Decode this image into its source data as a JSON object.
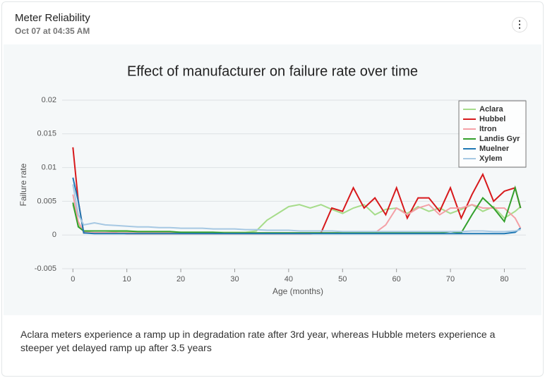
{
  "header": {
    "title": "Meter Reliability",
    "subtitle": "Oct 07 at 04:35 AM"
  },
  "chart_data": {
    "type": "line",
    "title": "Effect of manufacturer on failure rate over time",
    "x_label": "Age (months)",
    "y_label": "Failure rate",
    "x": [
      0,
      1,
      2,
      4,
      6,
      8,
      10,
      12,
      14,
      16,
      18,
      20,
      22,
      24,
      26,
      28,
      30,
      32,
      34,
      36,
      38,
      40,
      42,
      44,
      46,
      48,
      50,
      52,
      54,
      56,
      58,
      60,
      62,
      64,
      66,
      68,
      70,
      72,
      74,
      76,
      78,
      80,
      82,
      83
    ],
    "series": [
      {
        "name": "Aclara",
        "color": "#a6dc8a",
        "values": [
          0.0045,
          0.0015,
          0.0005,
          0.0006,
          0.0006,
          0.0005,
          0.0005,
          0.0005,
          0.0005,
          0.0005,
          0.0005,
          0.0004,
          0.0004,
          0.0004,
          0.0004,
          0.0004,
          0.0004,
          0.0004,
          0.0006,
          0.0022,
          0.0032,
          0.0042,
          0.0045,
          0.004,
          0.0045,
          0.0038,
          0.0032,
          0.004,
          0.0045,
          0.003,
          0.0038,
          0.004,
          0.0032,
          0.0042,
          0.0035,
          0.004,
          0.0032,
          0.0038,
          0.0045,
          0.0035,
          0.0042,
          0.0025,
          0.0035,
          0.0042
        ]
      },
      {
        "name": "Hubbel",
        "color": "#d7191c",
        "values": [
          0.013,
          0.005,
          0.0003,
          0.0003,
          0.0003,
          0.0003,
          0.0002,
          0.0002,
          0.0002,
          0.0002,
          0.0002,
          0.0002,
          0.0002,
          0.0002,
          0.0002,
          0.0002,
          0.0002,
          0.0002,
          0.0002,
          0.0002,
          0.0002,
          0.0002,
          0.0002,
          0.0002,
          0.0003,
          0.004,
          0.0035,
          0.007,
          0.004,
          0.0055,
          0.003,
          0.007,
          0.0025,
          0.0055,
          0.0055,
          0.0035,
          0.007,
          0.0025,
          0.006,
          0.009,
          0.005,
          0.0065,
          0.007,
          0.004
        ]
      },
      {
        "name": "Itron",
        "color": "#f4a0a6",
        "values": [
          0.006,
          0.002,
          0.0004,
          0.0003,
          0.0003,
          0.0003,
          0.0003,
          0.0003,
          0.0003,
          0.0003,
          0.0003,
          0.0003,
          0.0003,
          0.0003,
          0.0003,
          0.0003,
          0.0003,
          0.0003,
          0.0003,
          0.0003,
          0.0003,
          0.0003,
          0.0003,
          0.0003,
          0.0003,
          0.0003,
          0.0003,
          0.0003,
          0.0003,
          0.0003,
          0.0015,
          0.004,
          0.003,
          0.004,
          0.0045,
          0.003,
          0.004,
          0.004,
          0.0045,
          0.004,
          0.004,
          0.004,
          0.0025,
          0.001
        ]
      },
      {
        "name": "Landis Gyr",
        "color": "#33a02c",
        "values": [
          0.0048,
          0.0012,
          0.0006,
          0.0006,
          0.0006,
          0.0006,
          0.0006,
          0.0005,
          0.0005,
          0.0005,
          0.0005,
          0.0004,
          0.0004,
          0.0004,
          0.0004,
          0.0003,
          0.0003,
          0.0003,
          0.0003,
          0.0003,
          0.0003,
          0.0003,
          0.0003,
          0.0003,
          0.0003,
          0.0003,
          0.0003,
          0.0003,
          0.0003,
          0.0003,
          0.0003,
          0.0003,
          0.0003,
          0.0003,
          0.0003,
          0.0003,
          0.0005,
          0.0003,
          0.003,
          0.0055,
          0.004,
          0.002,
          0.007,
          0.004
        ]
      },
      {
        "name": "Muelner",
        "color": "#1f78b4",
        "values": [
          0.0085,
          0.005,
          0.0003,
          0.0002,
          0.0002,
          0.0002,
          0.0002,
          0.0002,
          0.0002,
          0.0002,
          0.0002,
          0.0002,
          0.0002,
          0.0002,
          0.0002,
          0.0002,
          0.0002,
          0.0002,
          0.0002,
          0.0002,
          0.0002,
          0.0002,
          0.0002,
          0.0002,
          0.0002,
          0.0002,
          0.0002,
          0.0002,
          0.0002,
          0.0002,
          0.0002,
          0.0002,
          0.0002,
          0.0002,
          0.0002,
          0.0002,
          0.0002,
          0.0002,
          0.0002,
          0.0002,
          0.0002,
          0.0002,
          0.0004,
          0.001
        ]
      },
      {
        "name": "Xylem",
        "color": "#a6c8e3",
        "values": [
          0.0075,
          0.003,
          0.0015,
          0.0018,
          0.0015,
          0.0014,
          0.0013,
          0.0012,
          0.0012,
          0.0011,
          0.0011,
          0.001,
          0.001,
          0.001,
          0.0009,
          0.0009,
          0.0009,
          0.0008,
          0.0008,
          0.0007,
          0.0007,
          0.0007,
          0.0006,
          0.0006,
          0.0006,
          0.0006,
          0.0005,
          0.0005,
          0.0005,
          0.0005,
          0.0005,
          0.0005,
          0.0005,
          0.0005,
          0.0005,
          0.0005,
          0.0005,
          0.0005,
          0.0006,
          0.0006,
          0.0005,
          0.0005,
          0.0006,
          0.0008
        ]
      }
    ],
    "xlim": [
      -2,
      84
    ],
    "xticks": [
      0,
      10,
      20,
      30,
      40,
      50,
      60,
      70,
      80
    ],
    "ylim": [
      -0.005,
      0.02
    ],
    "yticks": [
      -0.005,
      0,
      0.005,
      0.01,
      0.015,
      0.02
    ],
    "grid": true,
    "legend": "upper right"
  },
  "footer": {
    "text": "Aclara meters experience a ramp up in degradation rate after 3rd year, whereas Hubble meters experience a steeper yet delayed ramp up after 3.5 years"
  }
}
